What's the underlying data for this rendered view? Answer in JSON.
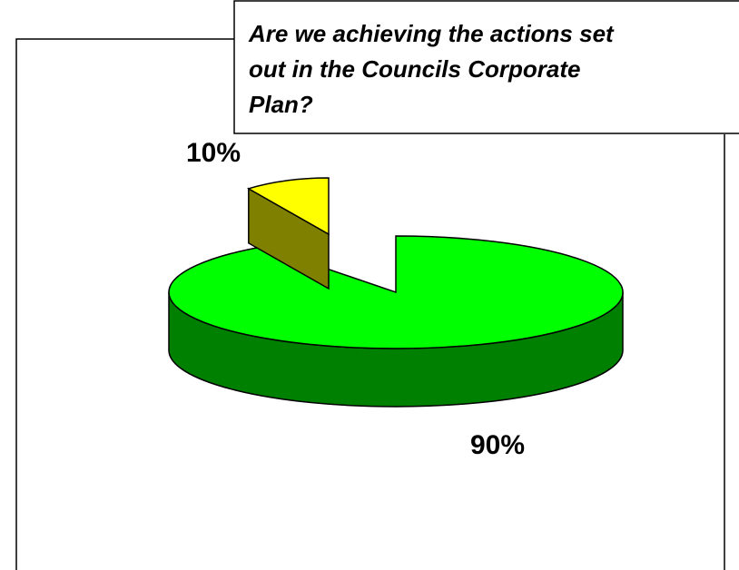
{
  "chart_data": {
    "type": "pie",
    "title": "Are we achieving the actions set out in the Councils Corporate Plan?",
    "title_lines": [
      "Are we achieving the actions set",
      "out in the Councils Corporate",
      "Plan?"
    ],
    "labels": [
      "90%",
      "10%"
    ],
    "values": [
      90,
      10
    ],
    "colors": {
      "slice_large_top": "#00ff00",
      "slice_large_side": "#008000",
      "slice_small_top": "#ffff00",
      "slice_small_side": "#808000"
    },
    "exploded_slice": "10%",
    "style": "3d"
  }
}
